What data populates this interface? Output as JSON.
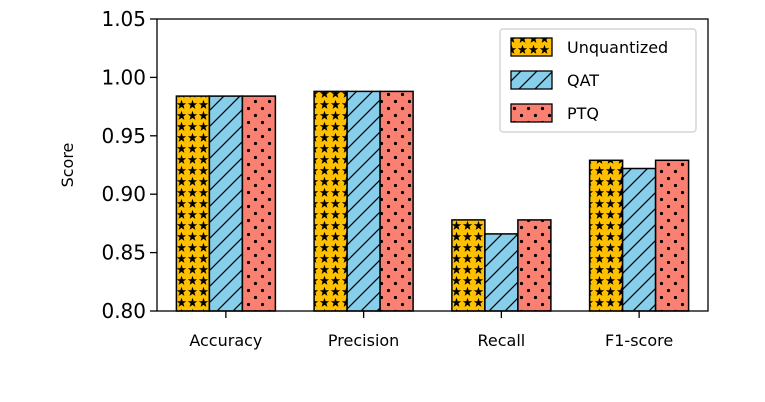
{
  "chart_data": {
    "type": "bar",
    "title": "",
    "xlabel": "",
    "ylabel": "Score",
    "ylim": [
      0.8,
      1.05
    ],
    "yticks": [
      "0.80",
      "0.85",
      "0.90",
      "0.95",
      "1.00",
      "1.05"
    ],
    "categories": [
      "Accuracy",
      "Precision",
      "Recall",
      "F1-score"
    ],
    "legend_position": "top-right",
    "series": [
      {
        "name": "Unquantized",
        "values": [
          0.984,
          0.988,
          0.878,
          0.929
        ],
        "color": "#FFC000",
        "hatch": "stars"
      },
      {
        "name": "QAT",
        "values": [
          0.984,
          0.988,
          0.866,
          0.922
        ],
        "color": "#87CEEB",
        "hatch": "diagonal"
      },
      {
        "name": "PTQ",
        "values": [
          0.984,
          0.988,
          0.878,
          0.929
        ],
        "color": "#FA8072",
        "hatch": "dots"
      }
    ]
  }
}
